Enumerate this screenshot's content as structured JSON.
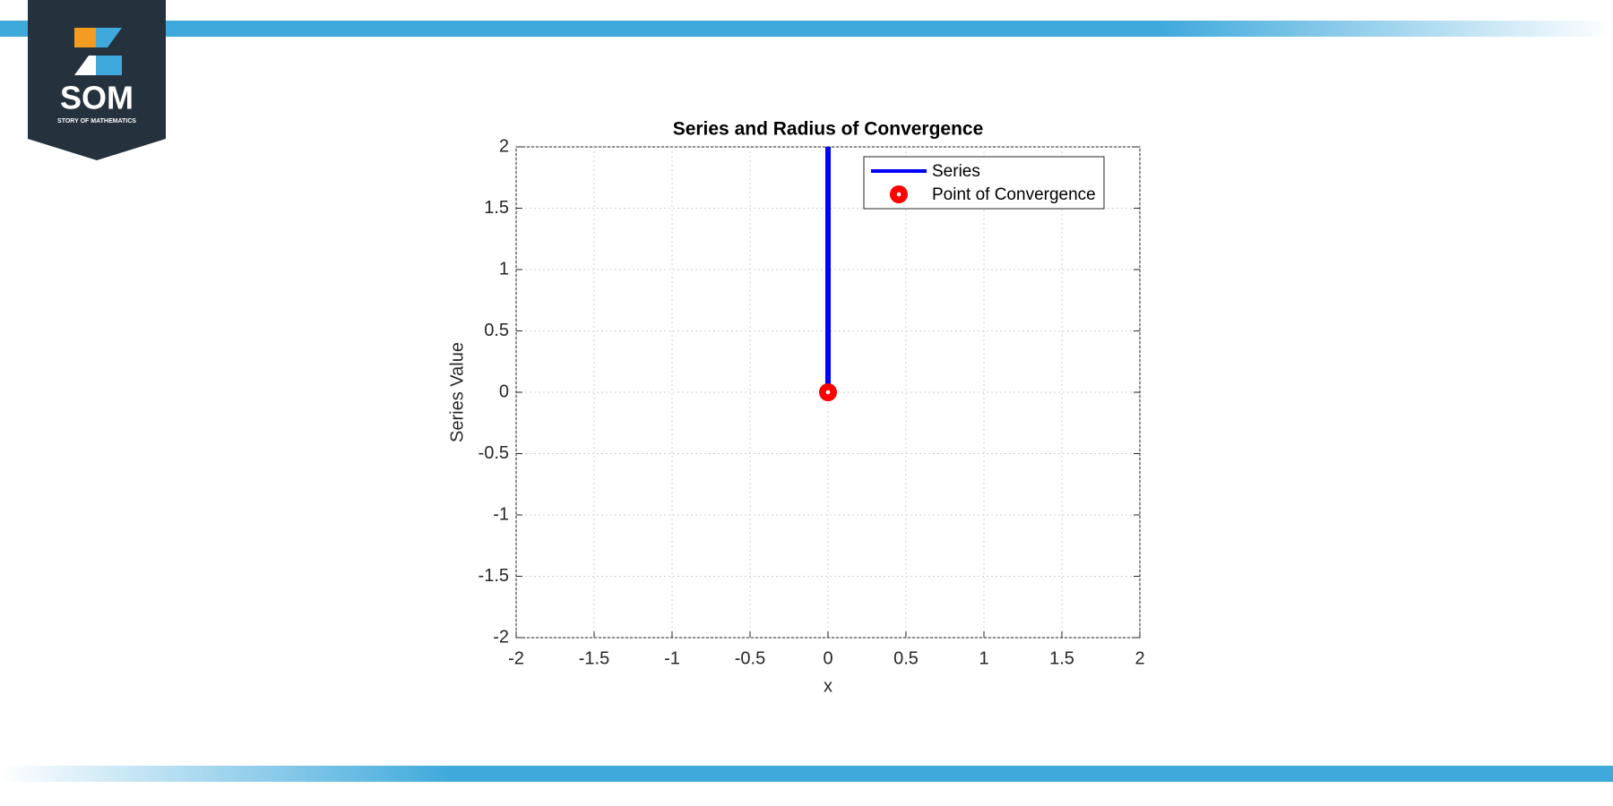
{
  "logo": {
    "title": "SOM",
    "subtitle": "STORY OF MATHEMATICS"
  },
  "chart_data": {
    "type": "line",
    "title": "Series and Radius of Convergence",
    "x_label": "x",
    "y_label": "Series Value",
    "xlim": [
      -2,
      2
    ],
    "xticks": [
      -2,
      -1.5,
      -1,
      -0.5,
      0,
      0.5,
      1,
      1.5,
      2
    ],
    "ylim": [
      -2,
      2
    ],
    "yticks": [
      -2,
      -1.5,
      -1,
      -0.5,
      0,
      0.5,
      1,
      1.5,
      2
    ],
    "grid": true,
    "legend": "northeast",
    "series": [
      {
        "name": "Series",
        "type": "line",
        "color": "#0000ff",
        "x": [
          0,
          0
        ],
        "values": [
          0,
          2
        ]
      },
      {
        "name": "Point of Convergence",
        "type": "scatter",
        "color": "#ff0000",
        "x": [
          0
        ],
        "values": [
          0
        ]
      }
    ]
  }
}
